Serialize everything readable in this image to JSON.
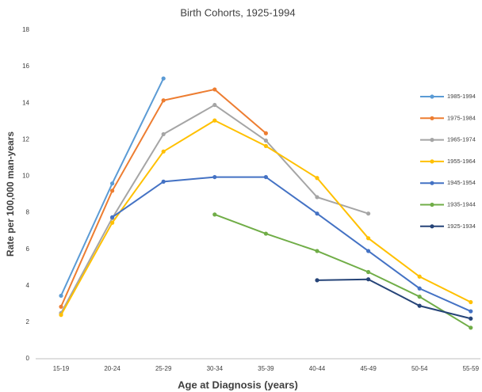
{
  "chart_data": {
    "type": "line",
    "title": "Birth Cohorts, 1925-1994",
    "x_label": "Age at Diagnosis (years)",
    "y_label": "Rate per 100,000 man-years",
    "categories": [
      "15-19",
      "20-24",
      "25-29",
      "30-34",
      "35-39",
      "40-44",
      "45-49",
      "50-54",
      "55-59"
    ],
    "ylim": [
      0,
      18
    ],
    "yticks": [
      0,
      2,
      4,
      6,
      8,
      10,
      12,
      14,
      16,
      18
    ],
    "grid": false,
    "legend": "right",
    "series": [
      {
        "name": "1985-1994",
        "color": "#5b9bd5",
        "values": [
          3.45,
          9.6,
          15.35,
          null,
          null,
          null,
          null,
          null,
          null
        ]
      },
      {
        "name": "1975-1984",
        "color": "#ed7d31",
        "values": [
          2.85,
          9.2,
          14.15,
          14.75,
          12.35,
          null,
          null,
          null,
          null
        ]
      },
      {
        "name": "1965-1974",
        "color": "#a5a5a5",
        "values": [
          2.5,
          7.7,
          12.3,
          13.9,
          11.95,
          8.85,
          7.95,
          null,
          null
        ]
      },
      {
        "name": "1955-1964",
        "color": "#ffc000",
        "values": [
          2.4,
          7.45,
          11.35,
          13.05,
          11.65,
          9.9,
          6.6,
          4.5,
          3.1
        ]
      },
      {
        "name": "1945-1954",
        "color": "#4472c4",
        "values": [
          null,
          7.75,
          9.7,
          9.95,
          9.95,
          7.95,
          5.9,
          3.85,
          2.6
        ]
      },
      {
        "name": "1935-1944",
        "color": "#70ad47",
        "values": [
          null,
          null,
          null,
          7.9,
          6.85,
          5.9,
          4.75,
          3.4,
          1.7
        ]
      },
      {
        "name": "1925-1934",
        "color": "#264478",
        "values": [
          null,
          null,
          null,
          null,
          null,
          4.3,
          4.35,
          2.9,
          2.2
        ]
      }
    ]
  }
}
